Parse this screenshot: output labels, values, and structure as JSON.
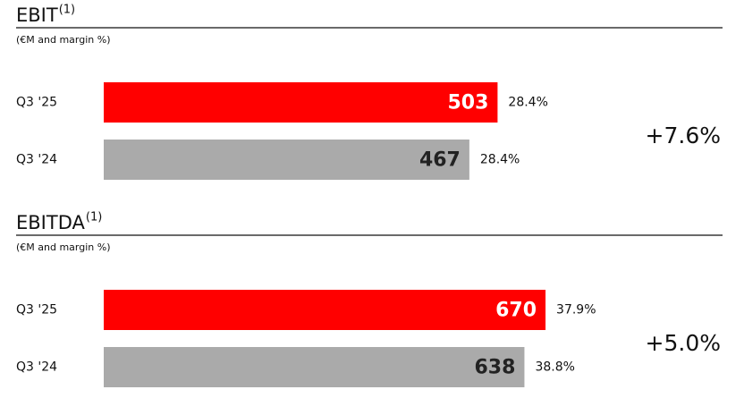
{
  "chart_data": [
    {
      "type": "bar",
      "title": "EBIT",
      "title_note": "(1)",
      "subtitle": "(€M and margin %)",
      "categories": [
        "Q3 '25",
        "Q3 '24"
      ],
      "values": [
        503,
        467
      ],
      "colors": [
        "#ff0000",
        "#aaaaaa"
      ],
      "margins": [
        {
          "value": 28.4,
          "label": "28.4%"
        },
        {
          "value": 28.4,
          "label": "28.4%"
        }
      ],
      "annotation": "+7.6%",
      "xlim": [
        0,
        667
      ]
    },
    {
      "type": "bar",
      "title": "EBITDA",
      "title_note": "(1)",
      "subtitle": "(€M and margin %)",
      "categories": [
        "Q3 '25",
        "Q3 '24"
      ],
      "values": [
        670,
        638
      ],
      "colors": [
        "#ff0000",
        "#aaaaaa"
      ],
      "margins": [
        {
          "value": 37.9,
          "label": "37.9%"
        },
        {
          "value": 38.8,
          "label": "38.8%"
        }
      ],
      "annotation": "+5.0%",
      "xlim": [
        0,
        792
      ]
    }
  ]
}
